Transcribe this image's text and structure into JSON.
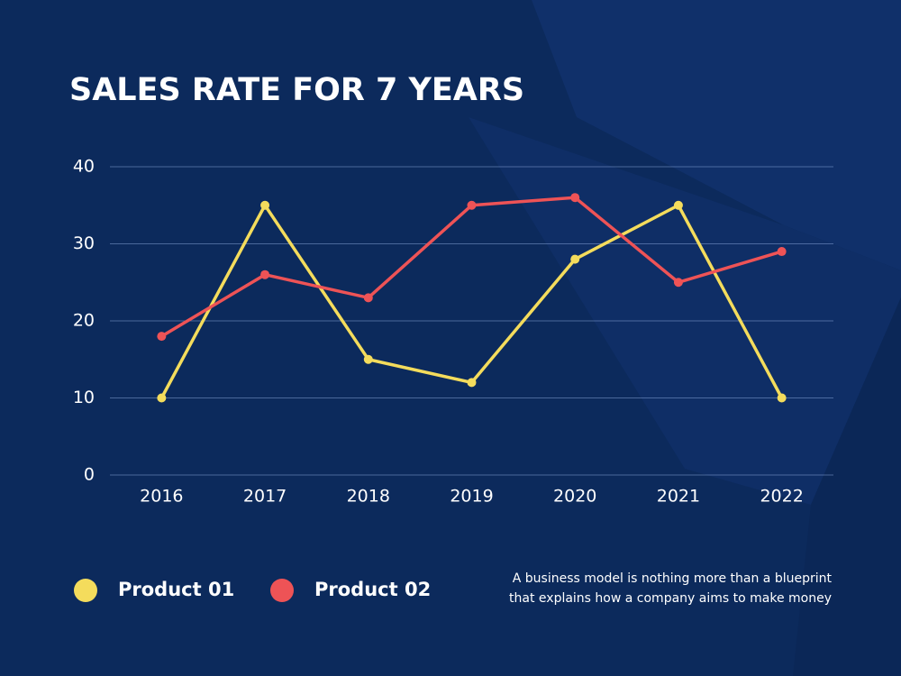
{
  "chart_data": {
    "type": "line",
    "title": "SALES RATE FOR 7 YEARS",
    "categories": [
      "2016",
      "2017",
      "2018",
      "2019",
      "2020",
      "2021",
      "2022"
    ],
    "series": [
      {
        "name": "Product 01",
        "color": "#f4dc5c",
        "values": [
          10,
          35,
          15,
          12,
          28,
          35,
          10
        ]
      },
      {
        "name": "Product 02",
        "color": "#ee5356",
        "values": [
          18,
          26,
          23,
          35,
          36,
          25,
          29
        ]
      }
    ],
    "ylim": [
      0,
      40
    ],
    "yticks": [
      0,
      10,
      20,
      30,
      40
    ],
    "grid": true,
    "note": [
      "A business model is nothing more than a blueprint",
      "that explains how a company aims to make money"
    ]
  }
}
